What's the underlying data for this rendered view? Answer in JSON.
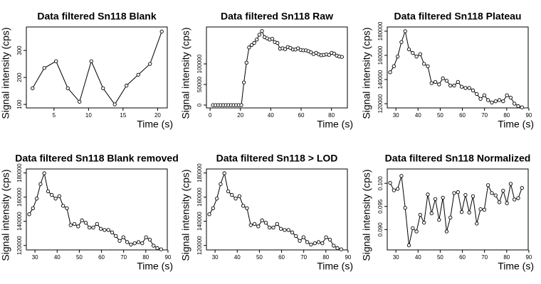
{
  "chart_data": [
    {
      "type": "line",
      "title": "Data filtered Sn118 Blank",
      "x_label": "Time (s)",
      "y_label": "Signal intensity (cps)",
      "color": "#000000",
      "x": [
        1.9,
        3.6,
        5.3,
        7.0,
        8.7,
        10.4,
        12.1,
        13.8,
        15.5,
        17.2,
        18.9,
        20.6
      ],
      "values": [
        160,
        235,
        260,
        160,
        110,
        260,
        160,
        100,
        170,
        210,
        250,
        370
      ],
      "xlim": [
        1,
        21.4
      ],
      "ylim": [
        87,
        387
      ],
      "xticks": [
        5,
        10,
        15,
        20
      ],
      "yticks": [
        100,
        200,
        300
      ]
    },
    {
      "type": "line",
      "title": "Data filtered Sn118 Raw",
      "x_label": "Time (s)",
      "y_label": "Signal intensity (cps)",
      "color": "#000000",
      "x": [
        1.9,
        3.6,
        5.3,
        7.0,
        8.7,
        10.4,
        12.1,
        13.8,
        15.5,
        17.2,
        18.9,
        20.6,
        22.3,
        24.0,
        25.7,
        27.4,
        29.1,
        30.8,
        32.5,
        34.2,
        35.9,
        37.6,
        39.3,
        41.0,
        42.7,
        44.4,
        46.1,
        47.8,
        49.5,
        51.2,
        52.9,
        54.6,
        56.3,
        58.0,
        59.7,
        61.4,
        63.1,
        64.8,
        66.5,
        68.2,
        69.9,
        71.6,
        73.3,
        75.0,
        76.7,
        78.4,
        80.1,
        81.8,
        83.5,
        85.2,
        86.9
      ],
      "values": [
        0,
        0,
        0,
        0,
        0,
        0,
        0,
        0,
        0,
        0,
        0,
        0,
        55000,
        103000,
        140000,
        146000,
        151000,
        159000,
        171000,
        180000,
        165000,
        162000,
        159000,
        161000,
        153000,
        151000,
        137000,
        138000,
        136000,
        141000,
        139000,
        135000,
        135000,
        138000,
        134000,
        133000,
        133000,
        131000,
        128000,
        124000,
        127000,
        123000,
        121000,
        122000,
        123000,
        122000,
        127000,
        125000,
        120000,
        118000,
        117000
      ],
      "xlim": [
        -2.4,
        90.5
      ],
      "ylim": [
        -6900,
        189700
      ],
      "xticks": [
        0,
        20,
        40,
        60,
        80
      ],
      "yticks": [
        0,
        50000,
        100000
      ]
    },
    {
      "type": "line",
      "title": "Data filtered Sn118 Plateau",
      "x_label": "Time (s)",
      "y_label": "Signal intensity (cps)",
      "color": "#000000",
      "x": [
        27.4,
        29.1,
        30.8,
        32.5,
        34.2,
        35.9,
        37.6,
        39.3,
        41.0,
        42.7,
        44.4,
        46.1,
        47.8,
        49.5,
        51.2,
        52.9,
        54.6,
        56.3,
        58.0,
        59.7,
        61.4,
        63.1,
        64.8,
        66.5,
        68.2,
        69.9,
        71.6,
        73.3,
        75.0,
        76.7,
        78.4,
        80.1,
        81.8,
        83.5,
        85.2,
        86.9
      ],
      "values": [
        146000,
        151000,
        159000,
        171000,
        180000,
        165000,
        162000,
        159000,
        161000,
        153000,
        151000,
        137000,
        138000,
        136000,
        141000,
        139000,
        135000,
        135000,
        138000,
        134000,
        133000,
        133000,
        131000,
        128000,
        124000,
        127000,
        123000,
        121000,
        122000,
        123000,
        122000,
        127000,
        125000,
        120000,
        118000,
        117000
      ],
      "xlim": [
        26.1,
        89.7
      ],
      "ylim": [
        116500,
        183500
      ],
      "xticks": [
        30,
        40,
        50,
        60,
        70,
        80,
        90
      ],
      "yticks": [
        120000,
        140000,
        160000,
        180000
      ]
    },
    {
      "type": "line",
      "title": "Data filtered Sn118 Blank removed",
      "x_label": "Time (s)",
      "y_label": "Signal intensity (cps)",
      "color": "#000000",
      "x": [
        27.4,
        29.1,
        30.8,
        32.5,
        34.2,
        35.9,
        37.6,
        39.3,
        41.0,
        42.7,
        44.4,
        46.1,
        47.8,
        49.5,
        51.2,
        52.9,
        54.6,
        56.3,
        58.0,
        59.7,
        61.4,
        63.1,
        64.8,
        66.5,
        68.2,
        69.9,
        71.6,
        73.3,
        75.0,
        76.7,
        78.4,
        80.1,
        81.8,
        83.5,
        85.2,
        86.9
      ],
      "values": [
        145800,
        150800,
        158800,
        170800,
        179800,
        164800,
        161800,
        158800,
        160800,
        152800,
        150800,
        136800,
        137800,
        135800,
        140800,
        138800,
        134800,
        134800,
        137800,
        133800,
        132800,
        132800,
        130800,
        127800,
        123800,
        126800,
        122800,
        120800,
        121800,
        122800,
        121800,
        126800,
        124800,
        119800,
        117800,
        116800
      ],
      "xlim": [
        26.1,
        89.7
      ],
      "ylim": [
        116300,
        183300
      ],
      "xticks": [
        30,
        40,
        50,
        60,
        70,
        80,
        90
      ],
      "yticks": [
        120000,
        140000,
        160000,
        180000
      ]
    },
    {
      "type": "line",
      "title": "Data filtered Sn118 > LOD",
      "x_label": "Time (s)",
      "y_label": "Signal intensity (cps)",
      "color": "#000000",
      "x": [
        27.4,
        29.1,
        30.8,
        32.5,
        34.2,
        35.9,
        37.6,
        39.3,
        41.0,
        42.7,
        44.4,
        46.1,
        47.8,
        49.5,
        51.2,
        52.9,
        54.6,
        56.3,
        58.0,
        59.7,
        61.4,
        63.1,
        64.8,
        66.5,
        68.2,
        69.9,
        71.6,
        73.3,
        75.0,
        76.7,
        78.4,
        80.1,
        81.8,
        83.5,
        85.2,
        86.9
      ],
      "values": [
        145800,
        150800,
        158800,
        170800,
        179800,
        164800,
        161800,
        158800,
        160800,
        152800,
        150800,
        136800,
        137800,
        135800,
        140800,
        138800,
        134800,
        134800,
        137800,
        133800,
        132800,
        132800,
        130800,
        127800,
        123800,
        126800,
        122800,
        120800,
        121800,
        122800,
        121800,
        126800,
        124800,
        119800,
        117800,
        116800
      ],
      "xlim": [
        26.1,
        89.7
      ],
      "ylim": [
        116300,
        183300
      ],
      "xticks": [
        30,
        40,
        50,
        60,
        70,
        80,
        90
      ],
      "yticks": [
        120000,
        140000,
        160000,
        180000
      ]
    },
    {
      "type": "line",
      "title": "Data filtered Sn118 Normalized",
      "x_label": "Time (s)",
      "y_label": "Signal intensity (cps)",
      "color": "#000000",
      "x": [
        27.4,
        29.1,
        30.8,
        32.5,
        34.2,
        35.9,
        37.6,
        39.3,
        41.0,
        42.7,
        44.4,
        46.1,
        47.8,
        49.5,
        51.2,
        52.9,
        54.6,
        56.3,
        58.0,
        59.7,
        61.4,
        63.1,
        64.8,
        66.5,
        68.2,
        69.9,
        71.6,
        73.3,
        75.0,
        76.7,
        78.4,
        80.1,
        81.8,
        83.5,
        85.2,
        86.9
      ],
      "values": [
        0.1001,
        0.0985,
        0.0988,
        0.1016,
        0.0947,
        0.0866,
        0.0903,
        0.0896,
        0.0932,
        0.0915,
        0.0976,
        0.0935,
        0.0966,
        0.0921,
        0.0969,
        0.0896,
        0.0926,
        0.0979,
        0.0981,
        0.0938,
        0.0975,
        0.0937,
        0.0972,
        0.0913,
        0.0944,
        0.0943,
        0.0996,
        0.0979,
        0.0974,
        0.0959,
        0.0984,
        0.0957,
        0.0999,
        0.0965,
        0.0968,
        0.099
      ],
      "xlim": [
        26.1,
        89.7
      ],
      "ylim": [
        0.0856,
        0.1031
      ],
      "xticks": [
        30,
        40,
        50,
        60,
        70,
        80,
        90
      ],
      "yticks": [
        {
          "value": 0.09,
          "label": "0.090"
        },
        {
          "value": 0.095,
          "label": "0.095"
        },
        {
          "value": 0.1,
          "label": "0.100"
        }
      ]
    }
  ]
}
